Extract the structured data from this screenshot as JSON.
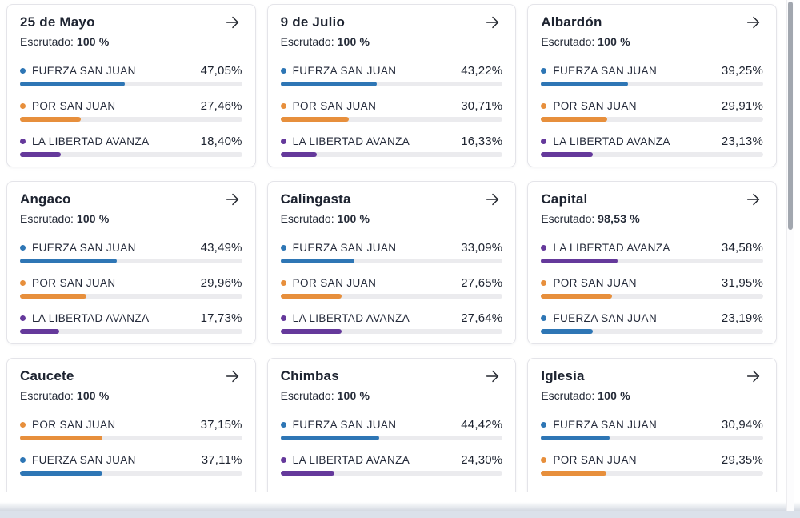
{
  "labels": {
    "escrutado": "Escrutado:"
  },
  "colors": {
    "blue": "#2e76b5",
    "orange": "#e78f3c",
    "purple": "#65399b",
    "bar_track": "#ebebee"
  },
  "cards": [
    {
      "title": "25 de Mayo",
      "escrutado": "100 %",
      "parties": [
        {
          "name": "FUERZA SAN JUAN",
          "value": "47,05%",
          "pct": 47.05,
          "color": "blue"
        },
        {
          "name": "POR SAN JUAN",
          "value": "27,46%",
          "pct": 27.46,
          "color": "orange"
        },
        {
          "name": "LA LIBERTAD AVANZA",
          "value": "18,40%",
          "pct": 18.4,
          "color": "purple"
        }
      ]
    },
    {
      "title": "9 de Julio",
      "escrutado": "100 %",
      "parties": [
        {
          "name": "FUERZA SAN JUAN",
          "value": "43,22%",
          "pct": 43.22,
          "color": "blue"
        },
        {
          "name": "POR SAN JUAN",
          "value": "30,71%",
          "pct": 30.71,
          "color": "orange"
        },
        {
          "name": "LA LIBERTAD AVANZA",
          "value": "16,33%",
          "pct": 16.33,
          "color": "purple"
        }
      ]
    },
    {
      "title": "Albardón",
      "escrutado": "100 %",
      "parties": [
        {
          "name": "FUERZA SAN JUAN",
          "value": "39,25%",
          "pct": 39.25,
          "color": "blue"
        },
        {
          "name": "POR SAN JUAN",
          "value": "29,91%",
          "pct": 29.91,
          "color": "orange"
        },
        {
          "name": "LA LIBERTAD AVANZA",
          "value": "23,13%",
          "pct": 23.13,
          "color": "purple"
        }
      ]
    },
    {
      "title": "Angaco",
      "escrutado": "100 %",
      "parties": [
        {
          "name": "FUERZA SAN JUAN",
          "value": "43,49%",
          "pct": 43.49,
          "color": "blue"
        },
        {
          "name": "POR SAN JUAN",
          "value": "29,96%",
          "pct": 29.96,
          "color": "orange"
        },
        {
          "name": "LA LIBERTAD AVANZA",
          "value": "17,73%",
          "pct": 17.73,
          "color": "purple"
        }
      ]
    },
    {
      "title": "Calingasta",
      "escrutado": "100 %",
      "parties": [
        {
          "name": "FUERZA SAN JUAN",
          "value": "33,09%",
          "pct": 33.09,
          "color": "blue"
        },
        {
          "name": "POR SAN JUAN",
          "value": "27,65%",
          "pct": 27.65,
          "color": "orange"
        },
        {
          "name": "LA LIBERTAD AVANZA",
          "value": "27,64%",
          "pct": 27.64,
          "color": "purple"
        }
      ]
    },
    {
      "title": "Capital",
      "escrutado": "98,53 %",
      "parties": [
        {
          "name": "LA LIBERTAD AVANZA",
          "value": "34,58%",
          "pct": 34.58,
          "color": "purple"
        },
        {
          "name": "POR SAN JUAN",
          "value": "31,95%",
          "pct": 31.95,
          "color": "orange"
        },
        {
          "name": "FUERZA SAN JUAN",
          "value": "23,19%",
          "pct": 23.19,
          "color": "blue"
        }
      ]
    },
    {
      "title": "Caucete",
      "escrutado": "100 %",
      "parties": [
        {
          "name": "POR SAN JUAN",
          "value": "37,15%",
          "pct": 37.15,
          "color": "orange"
        },
        {
          "name": "FUERZA SAN JUAN",
          "value": "37,11%",
          "pct": 37.11,
          "color": "blue"
        }
      ]
    },
    {
      "title": "Chimbas",
      "escrutado": "100 %",
      "parties": [
        {
          "name": "FUERZA SAN JUAN",
          "value": "44,42%",
          "pct": 44.42,
          "color": "blue"
        },
        {
          "name": "LA LIBERTAD AVANZA",
          "value": "24,30%",
          "pct": 24.3,
          "color": "purple"
        }
      ]
    },
    {
      "title": "Iglesia",
      "escrutado": "100 %",
      "parties": [
        {
          "name": "FUERZA SAN JUAN",
          "value": "30,94%",
          "pct": 30.94,
          "color": "blue"
        },
        {
          "name": "POR SAN JUAN",
          "value": "29,35%",
          "pct": 29.35,
          "color": "orange"
        }
      ]
    }
  ]
}
